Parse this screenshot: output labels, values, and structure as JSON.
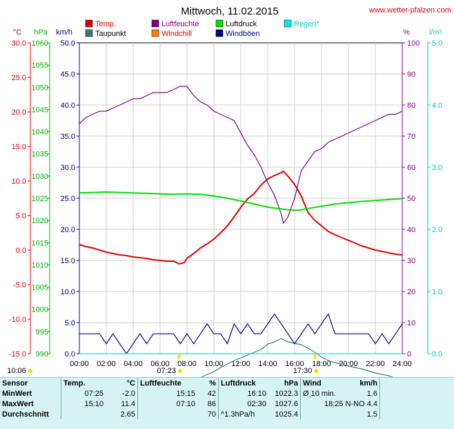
{
  "header": {
    "title": "Mittwoch, 11.02.2015",
    "site": "www.wetter-pfalzen.com"
  },
  "legend": [
    {
      "name": "Temp.",
      "color": "#e00000"
    },
    {
      "name": "Luftfeuchte",
      "color": "#800080"
    },
    {
      "name": "Luftdruck",
      "color": "#00e000"
    },
    {
      "name": "Regen*",
      "color": "#00e8e8"
    },
    {
      "name": "Taupunkt",
      "color": "#407878"
    },
    {
      "name": "Windchill",
      "color": "#ff8000"
    },
    {
      "name": "Windböen",
      "color": "#000080"
    }
  ],
  "chart_data": {
    "type": "line",
    "x_ticks": [
      "00:00",
      "02:00",
      "04:00",
      "06:00",
      "08:00",
      "10:00",
      "12:00",
      "14:00",
      "16:00",
      "18:00",
      "20:00",
      "22:00",
      "24:00"
    ],
    "xlim": [
      0,
      24
    ],
    "axes": {
      "temp": {
        "unit": "°C",
        "color": "#e00000",
        "ylim": [
          -15,
          30
        ],
        "ticks": [
          "30.0",
          "25.0",
          "20.0",
          "15.0",
          "10.0",
          "5.0",
          "0.0",
          "-5.0",
          "-10.0",
          "-15.0"
        ]
      },
      "press": {
        "unit": "hPa",
        "color": "#00b000",
        "ylim": [
          990,
          1060
        ],
        "ticks": [
          "1060",
          "1055",
          "1050",
          "1045",
          "1040",
          "1035",
          "1030",
          "1025",
          "1020",
          "1015",
          "1010",
          "1005",
          "1000",
          "995",
          "990"
        ]
      },
      "wind": {
        "unit": "km/h",
        "color": "#000080",
        "ylim": [
          0,
          50
        ],
        "ticks": [
          "50.0",
          "45.0",
          "40.0",
          "35.0",
          "30.0",
          "25.0",
          "20.0",
          "15.0",
          "10.0",
          "5.0",
          "0.0"
        ]
      },
      "hum": {
        "unit": "%",
        "color": "#800080",
        "ylim": [
          0,
          100
        ],
        "ticks": [
          "100",
          "90",
          "80",
          "70",
          "60",
          "50",
          "40",
          "30",
          "20",
          "10",
          "0"
        ]
      },
      "rain": {
        "unit": "l/m²",
        "color": "#00c8c8",
        "ylim": [
          0,
          5
        ],
        "ticks": [
          "5.0",
          "4.0",
          "3.0",
          "2.0",
          "1.0",
          "0.0"
        ]
      }
    },
    "series": [
      {
        "name": "Temp.",
        "axis": "temp",
        "color": "#e00000",
        "x": [
          0,
          0.5,
          1,
          1.5,
          2,
          2.5,
          3,
          3.5,
          4,
          4.5,
          5,
          5.5,
          6,
          6.5,
          7,
          7.42,
          7.8,
          8,
          8.5,
          9,
          9.5,
          10,
          10.5,
          11,
          11.5,
          12,
          12.5,
          13,
          13.5,
          14,
          14.5,
          15,
          15.17,
          15.5,
          16,
          16.5,
          17,
          17.5,
          18,
          18.5,
          19,
          19.5,
          20,
          20.5,
          21,
          21.5,
          22,
          22.5,
          23,
          23.5,
          24
        ],
        "y": [
          0.8,
          0.5,
          0.3,
          0.0,
          -0.3,
          -0.5,
          -0.7,
          -0.8,
          -1.0,
          -1.1,
          -1.2,
          -1.4,
          -1.5,
          -1.6,
          -1.6,
          -2.0,
          -1.8,
          -1.2,
          -0.5,
          0.3,
          0.9,
          1.6,
          2.5,
          3.5,
          4.8,
          6.2,
          7.4,
          8.2,
          9.4,
          10.3,
          10.8,
          11.2,
          11.4,
          10.7,
          9.5,
          7.8,
          5.4,
          4.3,
          3.5,
          2.7,
          2.2,
          1.8,
          1.4,
          1.0,
          0.6,
          0.3,
          0.0,
          -0.2,
          -0.4,
          -0.6,
          -0.7
        ]
      },
      {
        "name": "Taupunkt",
        "axis": "temp",
        "color": "#407878",
        "x": [
          0,
          1,
          2,
          3,
          4,
          5,
          6,
          7,
          7.5,
          8,
          8.5,
          9,
          9.5,
          10,
          10.5,
          11,
          11.5,
          12,
          12.5,
          13,
          13.5,
          14,
          14.5,
          15,
          15.5,
          16,
          16.5,
          17,
          17.5,
          18,
          18.5,
          19,
          19.5,
          20,
          20.5,
          21,
          21.5,
          22,
          22.5,
          23,
          23.5,
          24
        ],
        "y": [
          -18.5,
          -18.6,
          -18.8,
          -18.9,
          -19.0,
          -19.1,
          -19.2,
          -19.3,
          -19.5,
          -19.4,
          -19.0,
          -18.5,
          -18.0,
          -17.6,
          -17.0,
          -16.5,
          -16.0,
          -15.6,
          -15.2,
          -14.8,
          -14.4,
          -13.6,
          -13.3,
          -12.8,
          -13.3,
          -13.5,
          -13.7,
          -14.2,
          -14.8,
          -15.5,
          -16.0,
          -16.3,
          -16.5,
          -16.8,
          -17.0,
          -17.2,
          -17.5,
          -17.8,
          -18.0,
          -18.2,
          -18.6,
          -18.7
        ]
      },
      {
        "name": "Luftfeuchte",
        "axis": "hum",
        "color": "#800080",
        "x": [
          0,
          0.5,
          1,
          1.5,
          2,
          2.5,
          3,
          3.5,
          4,
          4.5,
          5,
          5.5,
          6,
          6.5,
          7,
          7.5,
          8,
          8.5,
          9,
          9.5,
          10,
          10.5,
          11,
          11.5,
          12,
          12.5,
          13,
          13.5,
          14,
          14.5,
          15,
          15.17,
          15.5,
          16,
          16.5,
          17,
          17.5,
          18,
          18.5,
          19,
          19.5,
          20,
          20.5,
          21,
          21.5,
          22,
          22.5,
          23,
          23.5,
          24
        ],
        "y": [
          74,
          76,
          77,
          78,
          78,
          79,
          80,
          81,
          82,
          82,
          83,
          84,
          84,
          84,
          85,
          86,
          86,
          83,
          81,
          80,
          78,
          77,
          76,
          75,
          71,
          67,
          64,
          60,
          55,
          51,
          45,
          42,
          44,
          50,
          59,
          62,
          65,
          66,
          68,
          69,
          70,
          71,
          72,
          73,
          74,
          75,
          76,
          77,
          77,
          78
        ]
      },
      {
        "name": "Luftdruck",
        "axis": "press",
        "color": "#00e000",
        "x": [
          0,
          1,
          2,
          3,
          4,
          5,
          6,
          7,
          8,
          9,
          10,
          11,
          12,
          13,
          14,
          15,
          15.5,
          16,
          16.17,
          16.5,
          17,
          18,
          19,
          20,
          21,
          22,
          23,
          24
        ],
        "y": [
          1026.2,
          1026.3,
          1026.4,
          1026.3,
          1026.2,
          1026.1,
          1026.0,
          1025.9,
          1026.0,
          1025.9,
          1025.5,
          1025.0,
          1024.4,
          1023.7,
          1023.0,
          1022.6,
          1022.4,
          1022.3,
          1022.3,
          1022.4,
          1022.7,
          1023.2,
          1023.7,
          1024.0,
          1024.3,
          1024.5,
          1024.7,
          1024.9
        ]
      },
      {
        "name": "Windböen",
        "axis": "wind",
        "color": "#000080",
        "x": [
          0,
          0.5,
          1,
          1.5,
          2,
          2.5,
          3,
          3.5,
          4,
          4.5,
          5,
          5.5,
          6,
          6.5,
          7,
          7.5,
          8,
          8.5,
          9,
          9.5,
          10,
          10.5,
          11,
          11.5,
          12,
          12.5,
          13,
          13.5,
          14,
          14.5,
          15,
          15.5,
          16,
          16.5,
          17,
          17.5,
          18,
          18.5,
          19,
          19.5,
          20,
          20.5,
          21,
          21.5,
          22,
          22.5,
          23,
          23.5,
          24
        ],
        "y": [
          3.2,
          3.2,
          3.2,
          3.2,
          1.6,
          3.2,
          1.6,
          0.0,
          1.6,
          3.2,
          1.6,
          3.2,
          3.2,
          3.2,
          3.2,
          1.6,
          3.2,
          1.6,
          3.2,
          4.8,
          3.2,
          3.2,
          1.6,
          4.8,
          3.2,
          4.8,
          3.2,
          3.2,
          4.8,
          6.4,
          4.8,
          3.2,
          1.6,
          3.2,
          4.8,
          3.2,
          4.8,
          6.4,
          3.2,
          3.2,
          3.2,
          3.2,
          3.2,
          3.2,
          1.6,
          3.2,
          1.6,
          3.2,
          4.8
        ]
      },
      {
        "name": "Regen*",
        "axis": "rain",
        "color": "#00e8e8",
        "x": [
          0,
          24
        ],
        "y": [
          0,
          0
        ]
      }
    ],
    "markers": [
      {
        "time": "10:06",
        "label": "10:06"
      },
      {
        "time": "07:23",
        "label": "07:23"
      },
      {
        "time": "17:30",
        "label": "17:30"
      }
    ]
  },
  "stats": {
    "headers": [
      "Sensor",
      "Temp.",
      "°C",
      "Luftfeuchte",
      "%",
      "Luftdruck",
      "hPa",
      "Wind",
      "km/h"
    ],
    "rows": [
      [
        "MinWert",
        "07:25",
        "-2.0",
        "15:15",
        "42",
        "16:10",
        "1022.3",
        "Ø 10 min.",
        "1.6"
      ],
      [
        "MaxWert",
        "15:10",
        "11.4",
        "07:10",
        "86",
        "02:30",
        "1027.6",
        "18:25   N-NO 4.4",
        ""
      ],
      [
        "Durchschnitt",
        "",
        "2.65",
        "",
        "70",
        "^1.3hPa/h",
        "1025.4",
        "",
        "1.5"
      ]
    ]
  }
}
